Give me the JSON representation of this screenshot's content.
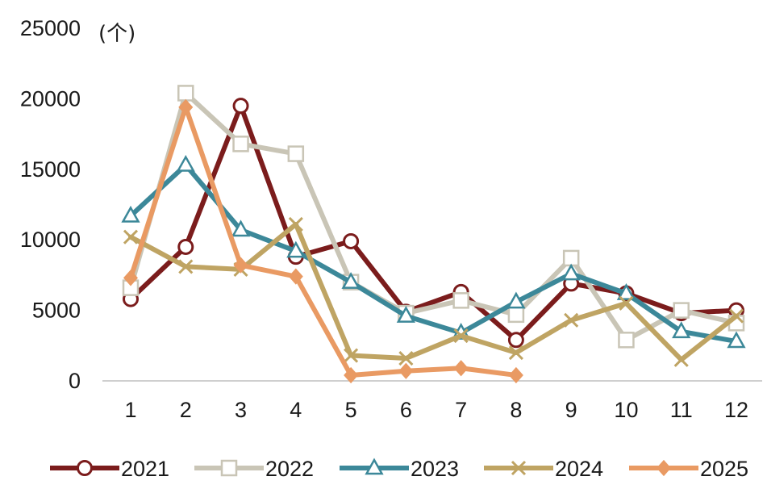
{
  "chart_data": {
    "type": "line",
    "unit_label": "(个)",
    "x": [
      "1",
      "2",
      "3",
      "4",
      "5",
      "6",
      "7",
      "8",
      "9",
      "10",
      "11",
      "12"
    ],
    "ylim": [
      0,
      25000
    ],
    "yticks": [
      "0",
      "5000",
      "10000",
      "15000",
      "20000",
      "25000"
    ],
    "ytick_values": [
      0,
      5000,
      10000,
      15000,
      20000,
      25000
    ],
    "grid": false,
    "legend_position": "bottom",
    "series": [
      {
        "name": "2021",
        "color": "#7B1C1C",
        "marker": "circle",
        "values": [
          5800,
          9500,
          19500,
          8800,
          9900,
          4900,
          6300,
          2900,
          6900,
          6200,
          4800,
          5000
        ]
      },
      {
        "name": "2022",
        "color": "#C9C5B6",
        "marker": "square",
        "values": [
          6600,
          20400,
          16800,
          16100,
          7000,
          4800,
          5700,
          4700,
          8700,
          2900,
          5000,
          4100
        ]
      },
      {
        "name": "2023",
        "color": "#3C8899",
        "marker": "triangle",
        "values": [
          11700,
          15300,
          10700,
          9200,
          7000,
          4600,
          3400,
          5600,
          7600,
          6200,
          3500,
          2800
        ]
      },
      {
        "name": "2024",
        "color": "#BFA463",
        "marker": "x",
        "values": [
          10200,
          8100,
          7900,
          11100,
          1800,
          1600,
          3200,
          2000,
          4300,
          5500,
          1500,
          4600
        ]
      },
      {
        "name": "2025",
        "color": "#E99A63",
        "marker": "diamond",
        "values": [
          7300,
          19400,
          8200,
          7400,
          400,
          700,
          900,
          400,
          null,
          null,
          null,
          null
        ]
      }
    ]
  }
}
